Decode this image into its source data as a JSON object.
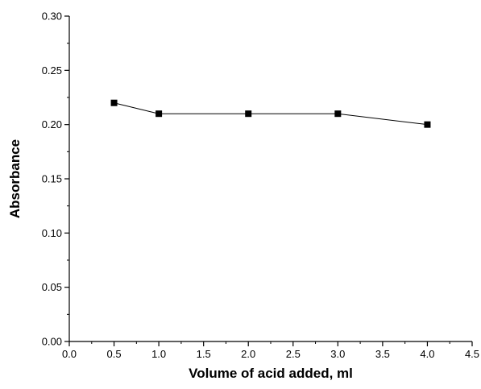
{
  "chart_data": {
    "type": "line",
    "title": "",
    "xlabel": "Volume of acid added, ml",
    "ylabel": "Absorbance",
    "xlim": [
      0.0,
      4.5
    ],
    "ylim": [
      0.0,
      0.3
    ],
    "x_ticks": [
      "0.0",
      "0.5",
      "1.0",
      "1.5",
      "2.0",
      "2.5",
      "3.0",
      "3.5",
      "4.0",
      "4.5"
    ],
    "y_ticks": [
      "0.00",
      "0.05",
      "0.10",
      "0.15",
      "0.20",
      "0.25",
      "0.30"
    ],
    "grid": false,
    "legend": "none",
    "marker": "square",
    "series": [
      {
        "x": [
          0.5,
          1.0,
          2.0,
          3.0,
          4.0
        ],
        "y": [
          0.22,
          0.21,
          0.21,
          0.21,
          0.2
        ],
        "color": "#000000"
      }
    ]
  }
}
